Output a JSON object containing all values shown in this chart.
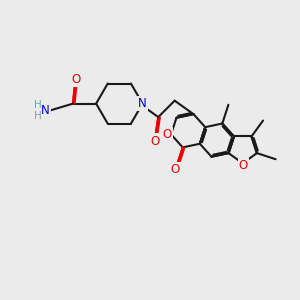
{
  "bg_color": "#ebebeb",
  "bond_color": "#1a1a1a",
  "bond_width": 1.5,
  "dbo": 0.055,
  "n_color": "#0000ee",
  "o_color": "#ee0000",
  "h_color": "#5fafaf",
  "font_size": 8.5,
  "font_size_h": 7.5,
  "figsize": [
    3.0,
    3.0
  ],
  "dpi": 100,
  "xlim": [
    0,
    10
  ],
  "ylim": [
    0,
    10
  ],
  "BL": 0.78
}
